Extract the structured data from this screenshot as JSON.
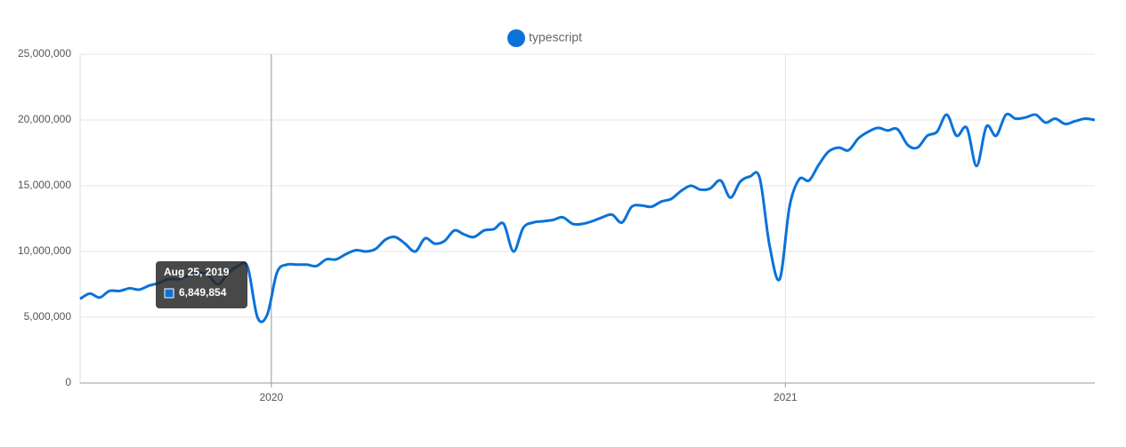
{
  "chart_data": {
    "type": "line",
    "x": [
      2019.628,
      2019.647,
      2019.666,
      2019.685,
      2019.705,
      2019.724,
      2019.743,
      2019.762,
      2019.781,
      2019.8,
      2019.82,
      2019.839,
      2019.858,
      2019.877,
      2019.896,
      2019.915,
      2019.935,
      2019.954,
      2019.973,
      2019.992,
      2020.011,
      2020.03,
      2020.05,
      2020.069,
      2020.088,
      2020.107,
      2020.126,
      2020.145,
      2020.165,
      2020.184,
      2020.203,
      2020.222,
      2020.241,
      2020.26,
      2020.28,
      2020.299,
      2020.318,
      2020.337,
      2020.356,
      2020.375,
      2020.394,
      2020.414,
      2020.433,
      2020.452,
      2020.471,
      2020.49,
      2020.509,
      2020.529,
      2020.548,
      2020.567,
      2020.586,
      2020.605,
      2020.624,
      2020.644,
      2020.663,
      2020.682,
      2020.701,
      2020.72,
      2020.739,
      2020.759,
      2020.778,
      2020.797,
      2020.816,
      2020.835,
      2020.854,
      2020.874,
      2020.893,
      2020.912,
      2020.931,
      2020.95,
      2020.969,
      2020.989,
      2021.008,
      2021.027,
      2021.046,
      2021.065,
      2021.084,
      2021.104,
      2021.123,
      2021.142,
      2021.161,
      2021.18,
      2021.199,
      2021.218,
      2021.238,
      2021.257,
      2021.276,
      2021.295,
      2021.314,
      2021.333,
      2021.353,
      2021.372,
      2021.391,
      2021.41,
      2021.429,
      2021.448,
      2021.468,
      2021.487,
      2021.506,
      2021.525,
      2021.544,
      2021.563,
      2021.583,
      2021.602
    ],
    "series": [
      {
        "name": "typescript",
        "color": "#0b72d9",
        "values": [
          6400000,
          6800000,
          6500000,
          7000000,
          7000000,
          7200000,
          7100000,
          7400000,
          7600000,
          7900000,
          7900000,
          8200000,
          8400000,
          8200000,
          7500000,
          8300000,
          8900000,
          8800000,
          5000000,
          5200000,
          8400000,
          9000000,
          9000000,
          9000000,
          8900000,
          9400000,
          9400000,
          9800000,
          10100000,
          10000000,
          10200000,
          10900000,
          11100000,
          10600000,
          10000000,
          11000000,
          10600000,
          10800000,
          11600000,
          11300000,
          11100000,
          11600000,
          11700000,
          12100000,
          10000000,
          11800000,
          12200000,
          12300000,
          12400000,
          12600000,
          12100000,
          12100000,
          12300000,
          12600000,
          12800000,
          12200000,
          13400000,
          13500000,
          13400000,
          13800000,
          14000000,
          14600000,
          15000000,
          14700000,
          14800000,
          15400000,
          14100000,
          15300000,
          15700000,
          15600000,
          10500000,
          7900000,
          13400000,
          15500000,
          15400000,
          16600000,
          17600000,
          17900000,
          17700000,
          18600000,
          19100000,
          19400000,
          19200000,
          19300000,
          18100000,
          17900000,
          18800000,
          19100000,
          20400000,
          18800000,
          19400000,
          16500000,
          19500000,
          18800000,
          20400000,
          20100000,
          20200000,
          20400000,
          19800000,
          20100000,
          19700000,
          19900000,
          20100000,
          20000000
        ]
      }
    ],
    "xlim": [
      2019.628,
      2021.602
    ],
    "xticks": [
      2020,
      2021
    ],
    "ylim": [
      0,
      25000000
    ],
    "yticks": [
      0,
      {
        "value": 5000000,
        "label": "5,000,000"
      },
      {
        "value": 10000000,
        "label": "10,000,000"
      },
      {
        "value": 15000000,
        "label": "15,000,000"
      },
      {
        "value": 20000000,
        "label": "20,000,000"
      },
      {
        "value": 25000000,
        "label": "25,000,000"
      }
    ],
    "grid": true,
    "legend": "top",
    "tooltip": {
      "date": "Aug 25, 2019",
      "value": 6849854,
      "value_label": "6,849,854"
    }
  }
}
